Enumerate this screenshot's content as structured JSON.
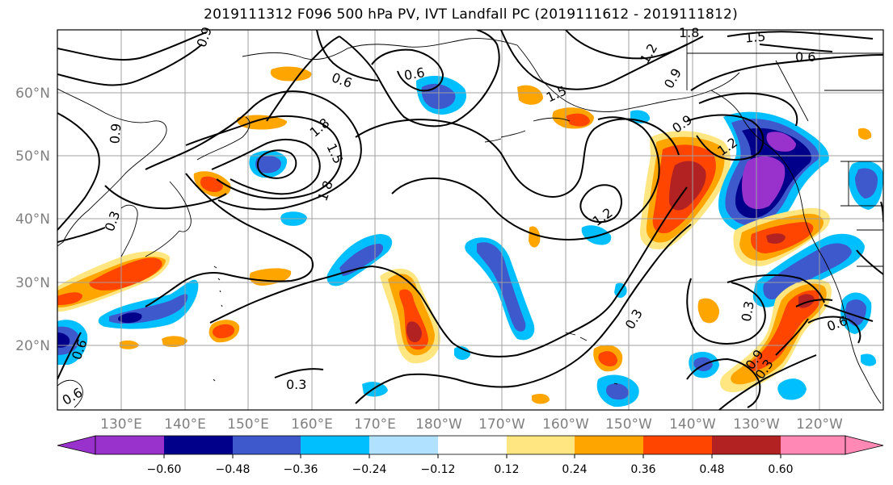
{
  "title": "2019111312 F096 500 hPa PV, IVT Landfall PC (2019111612 - 2019111812)",
  "map": {
    "lat_labels": [
      "60°N",
      "50°N",
      "40°N",
      "30°N",
      "20°N"
    ],
    "lon_labels": [
      "130°E",
      "140°E",
      "150°E",
      "160°E",
      "170°E",
      "180°W",
      "170°W",
      "160°W",
      "150°W",
      "140°W",
      "130°W",
      "120°W"
    ],
    "pv_contour_labels": [
      "0.9",
      "0.6",
      "0.9",
      "0.6",
      "1.8",
      "1.5",
      "1.8",
      "1.2",
      "1.5",
      "1.5",
      "1.8",
      "1.2",
      "0.9",
      "0.6",
      "0.9",
      "1.2",
      "0.3",
      "0.3",
      "0.3",
      "0.3",
      "0.6",
      "0.9",
      "0.3",
      "0.6",
      "0.6"
    ]
  },
  "colorbar": {
    "colors": [
      "#9932cc",
      "#00008b",
      "#3d59cc",
      "#00bfff",
      "#b0e2ff",
      "#ffffff",
      "#ffe680",
      "#ffa500",
      "#ff4500",
      "#b22222",
      "#ff88b4"
    ],
    "tick_labels": [
      "−0.60",
      "−0.48",
      "−0.36",
      "−0.24",
      "−0.12",
      "0.12",
      "0.24",
      "0.36",
      "0.48",
      "0.60"
    ]
  },
  "field_colors": {
    "neg_strong": "#9932cc",
    "neg_dark": "#00008b",
    "neg_mid": "#3d59cc",
    "neg_light": "#00bfff",
    "neg_pale": "#b0e2ff",
    "pos_pale": "#ffe680",
    "pos_light": "#ffa500",
    "pos_mid": "#ff4500",
    "pos_dark": "#b22222"
  }
}
